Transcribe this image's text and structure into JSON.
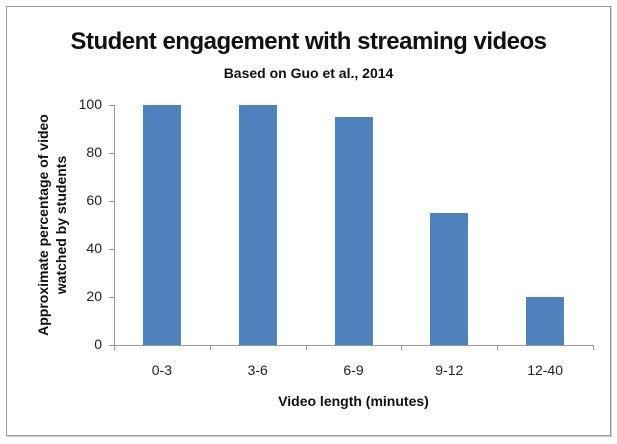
{
  "chart_data": {
    "type": "bar",
    "title": "Student engagement with streaming videos",
    "subtitle": "Based on Guo et al., 2014",
    "xlabel": "Video length (minutes)",
    "ylabel": "Approximate percentage of video watched by students",
    "ylabel_lines": [
      "Approximate percentage of video",
      "watched by students"
    ],
    "categories": [
      "0-3",
      "3-6",
      "6-9",
      "9-12",
      "12-40"
    ],
    "values": [
      100,
      100,
      95,
      55,
      20
    ],
    "ylim": [
      0,
      100
    ],
    "yticks": [
      0,
      20,
      40,
      60,
      80,
      100
    ],
    "grid": false,
    "legend": null,
    "bar_color": "#4f81bd"
  }
}
